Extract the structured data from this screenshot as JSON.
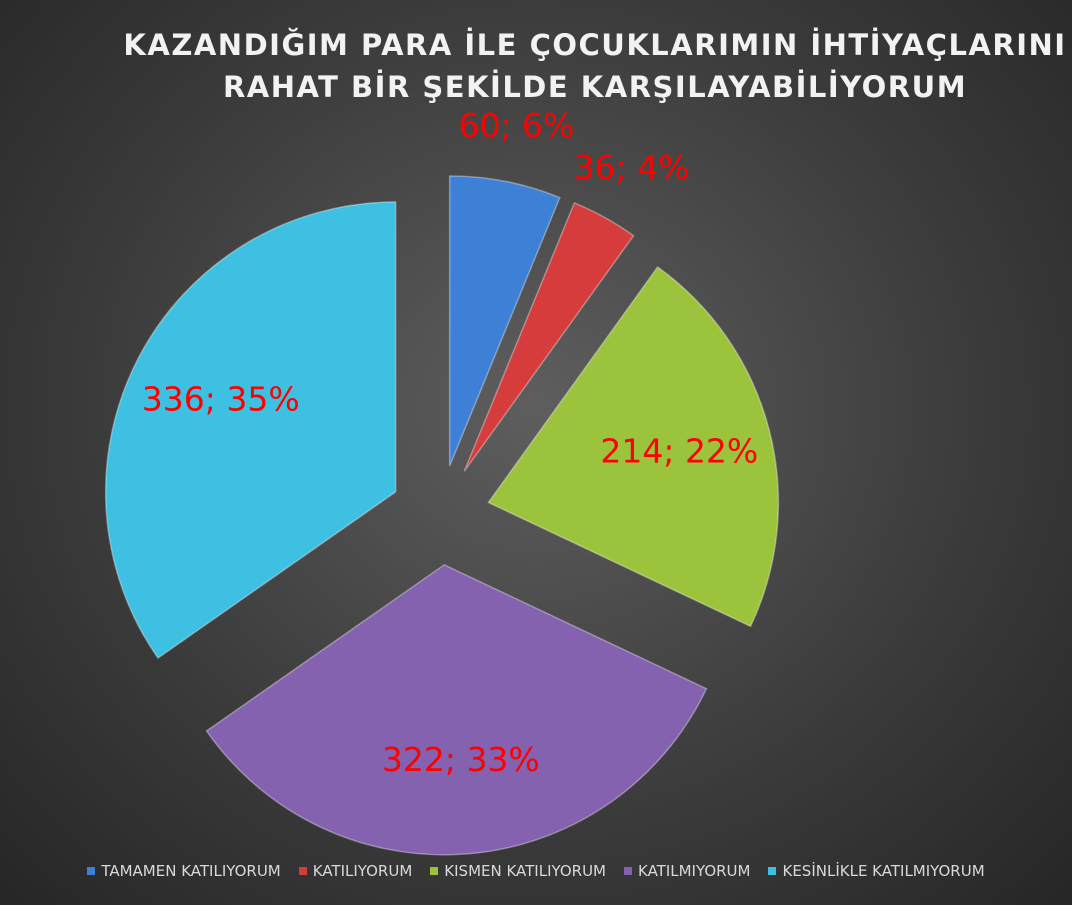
{
  "chart_data": {
    "type": "pie",
    "title": "KAZANDIĞIM PARA İLE ÇOCUKLARIMIN İHTİYAÇLARINI RAHAT BİR ŞEKİLDE KARŞILAYABİLİYORUM",
    "categories": [
      "TAMAMEN KATILIYORUM",
      "KATILIYORUM",
      "KISMEN KATILIYORUM",
      "KATILMIYORUM",
      "KESİNLİKLE KATILMIYORUM"
    ],
    "values": [
      60,
      36,
      214,
      322,
      336
    ],
    "value_labels": [
      "60; 6%",
      "36; 4%",
      "214; 22%",
      "322; 33%",
      "336; 35%"
    ],
    "colors": [
      "#3d80d6",
      "#d63c3c",
      "#9cc33c",
      "#8462b0",
      "#3ec0e2"
    ],
    "label_color": "#ff0000",
    "legend": "bottom"
  }
}
